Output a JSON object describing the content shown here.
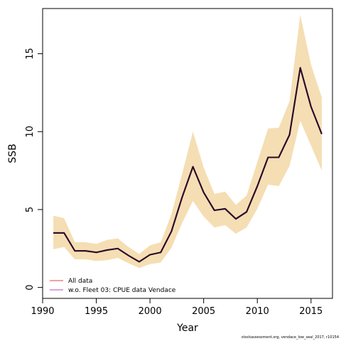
{
  "chart_data": {
    "type": "line",
    "xlabel": "Year",
    "ylabel": "SSB",
    "xlim": [
      1990,
      2017
    ],
    "ylim": [
      -0.7,
      17.9
    ],
    "xticks": [
      1990,
      1995,
      2000,
      2005,
      2010,
      2015
    ],
    "yticks": [
      0,
      5,
      10,
      15
    ],
    "grid": false,
    "legend_position": "bottom-left",
    "x": [
      1991,
      1992,
      1993,
      1994,
      1995,
      1996,
      1997,
      1998,
      1999,
      2000,
      2001,
      2002,
      2003,
      2004,
      2005,
      2006,
      2007,
      2008,
      2009,
      2010,
      2011,
      2012,
      2013,
      2014,
      2015,
      2016
    ],
    "series": [
      {
        "name": "All data",
        "color": "#F08080",
        "values": [
          3.5,
          3.5,
          2.35,
          2.35,
          2.25,
          2.4,
          2.5,
          2.05,
          1.65,
          2.1,
          2.25,
          3.6,
          5.8,
          7.75,
          6.1,
          4.95,
          5.05,
          4.4,
          4.85,
          6.5,
          8.35,
          8.35,
          9.8,
          14.1,
          11.6,
          9.85
        ]
      },
      {
        "name": "w.o. Fleet 03:  CPUE data Vendace",
        "color": "#CC88CC",
        "values": [
          3.5,
          3.5,
          2.35,
          2.35,
          2.25,
          2.4,
          2.5,
          2.05,
          1.65,
          2.1,
          2.25,
          3.6,
          5.8,
          7.75,
          6.1,
          4.95,
          5.05,
          4.4,
          4.85,
          6.5,
          8.35,
          8.35,
          9.8,
          14.1,
          11.6,
          9.85
        ]
      }
    ],
    "plotted_line_color": "#2A0A2A",
    "confidence_band": {
      "color": "#F5DEB3",
      "lower": [
        2.45,
        2.6,
        1.8,
        1.8,
        1.7,
        1.75,
        1.9,
        1.55,
        1.25,
        1.5,
        1.6,
        2.55,
        4.15,
        5.55,
        4.55,
        3.85,
        4.0,
        3.45,
        3.85,
        5.05,
        6.6,
        6.5,
        7.8,
        10.7,
        9.1,
        7.5
      ],
      "upper": [
        4.6,
        4.45,
        2.9,
        2.9,
        2.8,
        3.05,
        3.15,
        2.6,
        2.15,
        2.7,
        2.9,
        4.7,
        7.3,
        10.0,
        7.7,
        6.0,
        6.15,
        5.3,
        5.9,
        8.05,
        10.2,
        10.25,
        11.95,
        17.5,
        14.3,
        12.2
      ]
    }
  },
  "footer": "stockassessment.org, vendace_low_seal_2017, r10154"
}
